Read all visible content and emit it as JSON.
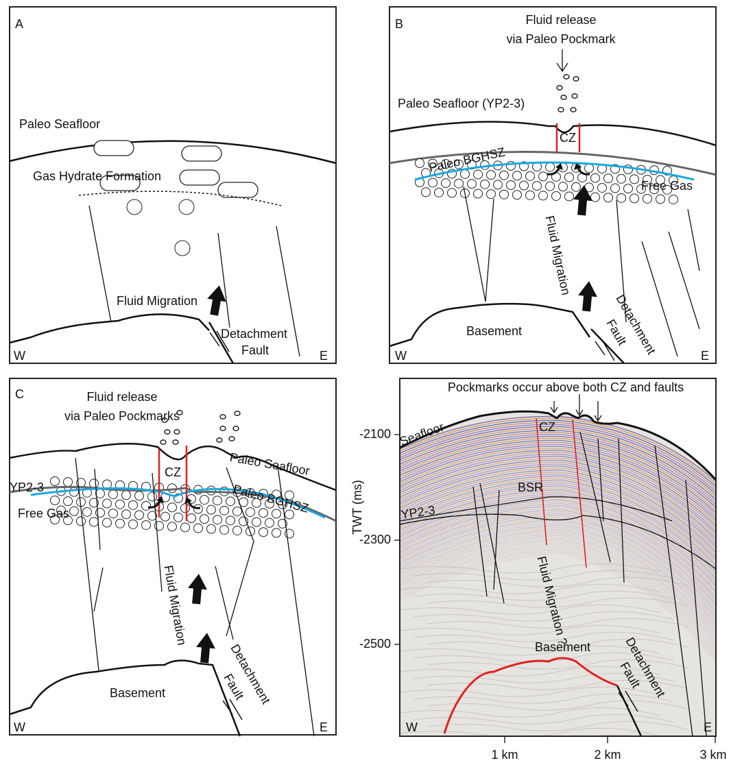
{
  "panels": [
    {
      "label": "A",
      "texts": [
        "Paleo Seafloor",
        "Gas Hydrate Formation",
        "Fluid Migration",
        "Detachment",
        "Fault",
        "W",
        "E"
      ]
    },
    {
      "label": "B",
      "texts": [
        "Fluid release",
        "via Paleo Pockmark",
        "Paleo Seafloor (YP2-3)",
        "CZ",
        "Paleo BGHSZ",
        "Free Gas",
        "Fluid Migration",
        "Detachment",
        "Fault",
        "Basement",
        "W",
        "E"
      ]
    },
    {
      "label": "C",
      "texts": [
        "Fluid release",
        "via Paleo Pockmarks",
        "CZ",
        "Paleo Seafloor",
        "YP2-3",
        "Paleo BGHSZ",
        "Free Gas",
        "Fluid Migration",
        "Detachment",
        "Fault",
        "Basement",
        "W",
        "E"
      ]
    },
    {
      "title": "Pockmarks occur above both CZ and faults",
      "texts": [
        "Seafloor",
        "CZ",
        "BSR",
        "YP2-3",
        "Fluid Migration ?",
        "Basement",
        "Detachment",
        "Fault",
        "W",
        "E"
      ],
      "y_axis": {
        "label": "TWT (ms)",
        "ticks": [
          "-2100",
          "-2300",
          "-2500"
        ]
      },
      "x_axis": {
        "ticks": [
          "1 km",
          "2 km",
          "3 km"
        ]
      }
    }
  ]
}
